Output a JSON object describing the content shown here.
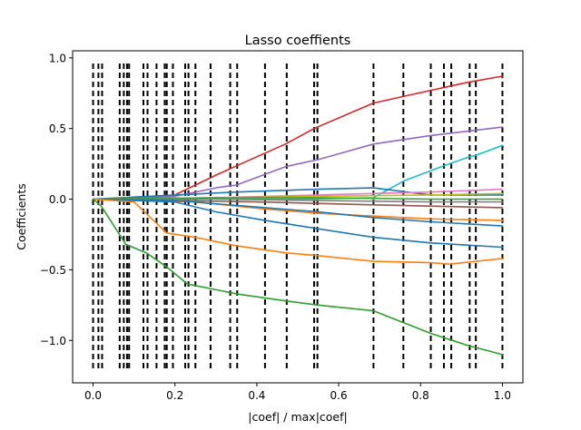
{
  "chart_data": {
    "type": "line",
    "title": "Lasso coeffients",
    "xlabel": "|coef| / max|coef|",
    "ylabel": "Coefficients",
    "xlim": [
      -0.05,
      1.05
    ],
    "ylim": [
      -1.3,
      1.05
    ],
    "xticks": [
      0.0,
      0.2,
      0.4,
      0.6,
      0.8,
      1.0
    ],
    "xtick_labels": [
      "0.0",
      "0.2",
      "0.4",
      "0.6",
      "0.8",
      "1.0"
    ],
    "yticks": [
      -1.0,
      -0.5,
      0.0,
      0.5,
      1.0
    ],
    "ytick_labels": [
      "−1.0",
      "−0.5",
      "0.0",
      "0.5",
      "1.0"
    ],
    "grid": false,
    "legend": "none",
    "vlines": {
      "x": [
        0.0,
        0.013,
        0.022,
        0.065,
        0.075,
        0.083,
        0.088,
        0.123,
        0.133,
        0.155,
        0.175,
        0.18,
        0.195,
        0.225,
        0.233,
        0.25,
        0.287,
        0.335,
        0.352,
        0.42,
        0.473,
        0.54,
        0.548,
        0.685,
        0.758,
        0.825,
        0.857,
        0.875,
        0.92,
        0.935,
        1.0
      ],
      "ymin": -1.2,
      "ymax": 0.96,
      "style": "dashed",
      "color": "#000000"
    },
    "series": [
      {
        "color": "#d62728",
        "x": [
          0,
          0.1,
          0.2,
          0.3,
          0.4,
          0.47,
          0.54,
          0.685,
          0.825,
          0.92,
          1.0
        ],
        "y": [
          0,
          0.01,
          0.03,
          0.17,
          0.3,
          0.39,
          0.5,
          0.68,
          0.77,
          0.83,
          0.87
        ]
      },
      {
        "color": "#9467bd",
        "x": [
          0,
          0.2,
          0.3,
          0.35,
          0.47,
          0.55,
          0.685,
          0.825,
          1.0
        ],
        "y": [
          0,
          0.02,
          0.08,
          0.1,
          0.23,
          0.28,
          0.39,
          0.45,
          0.51
        ]
      },
      {
        "color": "#17becf",
        "x": [
          0,
          0.5,
          0.685,
          0.76,
          0.86,
          0.92,
          0.935,
          1.0
        ],
        "y": [
          0,
          0.0,
          0.01,
          0.13,
          0.24,
          0.3,
          0.31,
          0.38
        ]
      },
      {
        "color": "#1f77b4",
        "x": [
          0,
          0.2,
          0.35,
          0.55,
          0.685,
          0.825,
          1.0
        ],
        "y": [
          0,
          0.03,
          0.05,
          0.07,
          0.08,
          0.03,
          0.03
        ]
      },
      {
        "color": "#e377c2",
        "x": [
          0,
          0.3,
          0.55,
          0.685,
          0.825,
          1.0
        ],
        "y": [
          0,
          0.01,
          0.03,
          0.04,
          0.05,
          0.07
        ]
      },
      {
        "color": "#bcbd22",
        "x": [
          0,
          0.3,
          0.55,
          0.825,
          1.0
        ],
        "y": [
          0,
          0.01,
          0.02,
          0.03,
          0.04
        ]
      },
      {
        "color": "#2ca02c",
        "x": [
          0,
          0.3,
          0.55,
          0.825,
          1.0
        ],
        "y": [
          0,
          0.01,
          0.01,
          0.0,
          0.0
        ]
      },
      {
        "color": "#7f7f7f",
        "x": [
          0,
          0.3,
          0.55,
          0.825,
          1.0
        ],
        "y": [
          0,
          0.0,
          -0.01,
          -0.02,
          -0.02
        ]
      },
      {
        "color": "#8c564b",
        "x": [
          0,
          0.4,
          0.685,
          1.0
        ],
        "y": [
          0,
          -0.02,
          -0.04,
          -0.06
        ]
      },
      {
        "color": "#ff7f0e",
        "x": [
          0,
          0.25,
          0.42,
          0.55,
          0.685,
          0.825,
          1.0
        ],
        "y": [
          0,
          -0.02,
          -0.07,
          -0.1,
          -0.12,
          -0.14,
          -0.15
        ]
      },
      {
        "color": "#1f77b4",
        "x": [
          0,
          0.2,
          0.42,
          0.55,
          0.685,
          0.825,
          1.0
        ],
        "y": [
          0,
          -0.01,
          -0.06,
          -0.09,
          -0.13,
          -0.16,
          -0.19
        ]
      },
      {
        "color": "#1f77b4",
        "x": [
          0,
          0.1,
          0.2,
          0.3,
          0.42,
          0.55,
          0.685,
          0.825,
          1.0
        ],
        "y": [
          0,
          -0.01,
          -0.02,
          -0.09,
          -0.15,
          -0.21,
          -0.27,
          -0.31,
          -0.34
        ]
      },
      {
        "color": "#ff7f0e",
        "x": [
          0,
          0.1,
          0.18,
          0.25,
          0.35,
          0.47,
          0.55,
          0.685,
          0.825,
          0.87,
          1.0
        ],
        "y": [
          0,
          -0.02,
          -0.24,
          -0.27,
          -0.33,
          -0.38,
          -0.4,
          -0.44,
          -0.45,
          -0.46,
          -0.42
        ]
      },
      {
        "color": "#2ca02c",
        "x": [
          0,
          0.02,
          0.08,
          0.13,
          0.18,
          0.23,
          0.35,
          0.47,
          0.55,
          0.685,
          0.825,
          0.92,
          0.935,
          1.0
        ],
        "y": [
          0,
          -0.05,
          -0.32,
          -0.38,
          -0.48,
          -0.6,
          -0.67,
          -0.72,
          -0.75,
          -0.79,
          -0.95,
          -1.04,
          -1.05,
          -1.1
        ]
      }
    ]
  }
}
